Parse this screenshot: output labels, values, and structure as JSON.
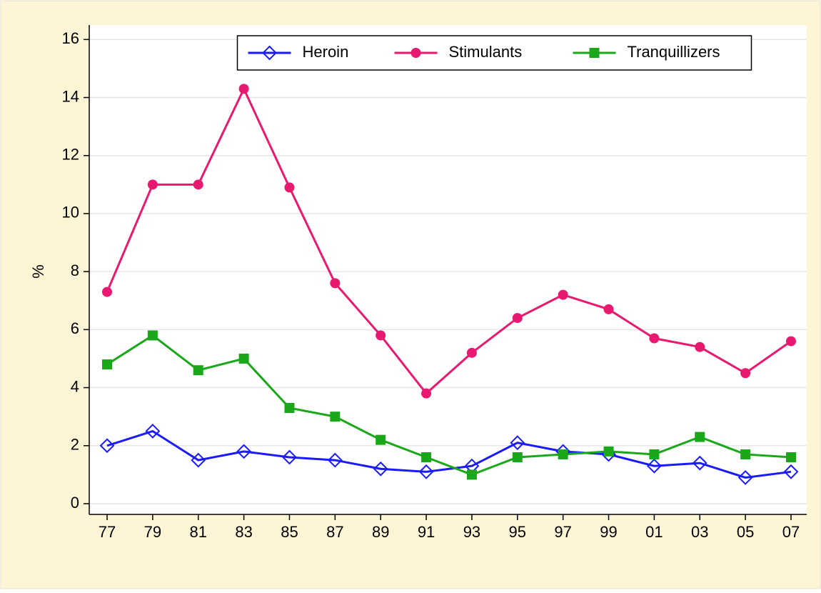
{
  "chart_data": {
    "type": "line",
    "y_label": "%",
    "categories": [
      "77",
      "79",
      "81",
      "83",
      "85",
      "87",
      "89",
      "91",
      "93",
      "95",
      "97",
      "99",
      "01",
      "03",
      "05",
      "07"
    ],
    "series": [
      {
        "name": "Heroin",
        "color": "#1a1aff",
        "marker": "diamond-open",
        "values": [
          2.0,
          2.5,
          1.5,
          1.8,
          1.6,
          1.5,
          1.2,
          1.1,
          1.3,
          2.1,
          1.8,
          1.7,
          1.3,
          1.4,
          0.9,
          1.1
        ]
      },
      {
        "name": "Stimulants",
        "color": "#e8196e",
        "marker": "circle",
        "values": [
          7.3,
          11.0,
          11.0,
          14.3,
          10.9,
          7.6,
          5.8,
          3.8,
          5.2,
          6.4,
          7.2,
          6.7,
          5.7,
          5.4,
          4.5,
          5.6
        ]
      },
      {
        "name": "Tranquillizers",
        "color": "#1aa81a",
        "marker": "square",
        "values": [
          4.8,
          5.8,
          4.6,
          5.0,
          3.3,
          3.0,
          2.2,
          1.6,
          1.0,
          1.6,
          1.7,
          1.8,
          1.7,
          2.3,
          1.7,
          1.6
        ]
      }
    ],
    "ylim": [
      -0.37,
      16.5
    ],
    "yticks": [
      0,
      2,
      4,
      6,
      8,
      10,
      12,
      14,
      16
    ],
    "grid": true,
    "legend_position": "top"
  }
}
